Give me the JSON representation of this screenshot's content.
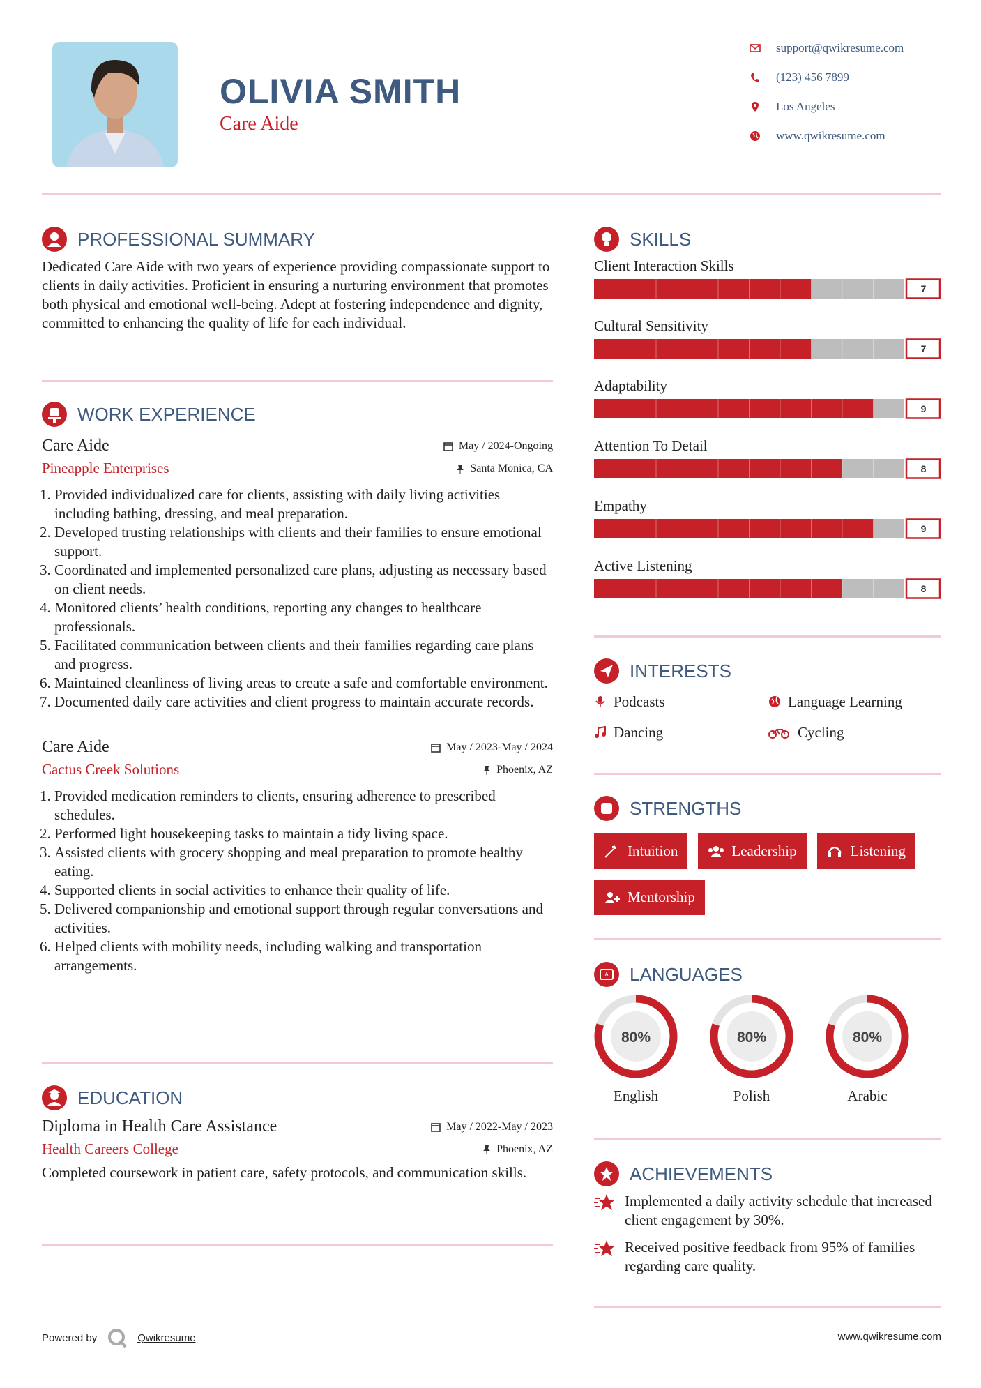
{
  "header": {
    "name": "OLIVIA SMITH",
    "title": "Care Aide",
    "contacts": [
      "support@qwikresume.com",
      "(123) 456 7899",
      "Los Angeles",
      "www.qwikresume.com"
    ]
  },
  "summary": {
    "heading": "PROFESSIONAL SUMMARY",
    "text": "Dedicated Care Aide with two years of experience providing compassionate support to clients in daily activities. Proficient in ensuring a nurturing environment that promotes both physical and emotional well-being. Adept at fostering independence and dignity, committed to enhancing the quality of life for each individual."
  },
  "experience": {
    "heading": "WORK EXPERIENCE",
    "jobs": [
      {
        "title": "Care Aide",
        "company": "Pineapple Enterprises",
        "date": "May / 2024-Ongoing",
        "location": "Santa Monica, CA",
        "duties": [
          "Provided individualized care for clients, assisting with daily living activities including bathing, dressing, and meal preparation.",
          "Developed trusting relationships with clients and their families to ensure emotional support.",
          "Coordinated and implemented personalized care plans, adjusting as necessary based on client needs.",
          "Monitored clients’ health conditions, reporting any changes to healthcare professionals.",
          "Facilitated communication between clients and their families regarding care plans and progress.",
          "Maintained cleanliness of living areas to create a safe and comfortable environment.",
          "Documented daily care activities and client progress to maintain accurate records."
        ]
      },
      {
        "title": "Care Aide",
        "company": "Cactus Creek Solutions",
        "date": "May / 2023-May / 2024",
        "location": "Phoenix, AZ",
        "duties": [
          "Provided medication reminders to clients, ensuring adherence to prescribed schedules.",
          "Performed light housekeeping tasks to maintain a tidy living space.",
          "Assisted clients with grocery shopping and meal preparation to promote healthy eating.",
          "Supported clients in social activities to enhance their quality of life.",
          "Delivered companionship and emotional support through regular conversations and activities.",
          "Helped clients with mobility needs, including walking and transportation arrangements."
        ]
      }
    ]
  },
  "education": {
    "heading": "EDUCATION",
    "degree": "Diploma in Health Care Assistance",
    "school": "Health Careers College",
    "date": "May / 2022-May / 2023",
    "location": "Phoenix, AZ",
    "description": "Completed coursework in patient care, safety protocols, and communication skills."
  },
  "skills": {
    "heading": "SKILLS",
    "items": [
      {
        "name": "Client Interaction Skills",
        "level": 7
      },
      {
        "name": "Cultural Sensitivity",
        "level": 7
      },
      {
        "name": "Adaptability",
        "level": 9
      },
      {
        "name": "Attention To Detail",
        "level": 8
      },
      {
        "name": "Empathy",
        "level": 9
      },
      {
        "name": "Active Listening",
        "level": 8
      }
    ]
  },
  "interests": {
    "heading": "INTERESTS",
    "items": [
      "Podcasts",
      "Language Learning",
      "Dancing",
      "Cycling"
    ]
  },
  "strengths": {
    "heading": "STRENGTHS",
    "items": [
      "Intuition",
      "Leadership",
      "Listening",
      "Mentorship"
    ]
  },
  "languages": {
    "heading": "LANGUAGES",
    "items": [
      {
        "name": "English",
        "level": 80,
        "label": "80%"
      },
      {
        "name": "Polish",
        "level": 80,
        "label": "80%"
      },
      {
        "name": "Arabic",
        "level": 80,
        "label": "80%"
      }
    ]
  },
  "achievements": {
    "heading": "ACHIEVEMENTS",
    "items": [
      "Implemented a daily activity schedule that increased client engagement by 30%.",
      "Received positive feedback from 95% of families regarding care quality."
    ]
  },
  "footer": {
    "powered_by": "Powered by",
    "brand": "Qwikresume",
    "website": "www.qwikresume.com"
  }
}
